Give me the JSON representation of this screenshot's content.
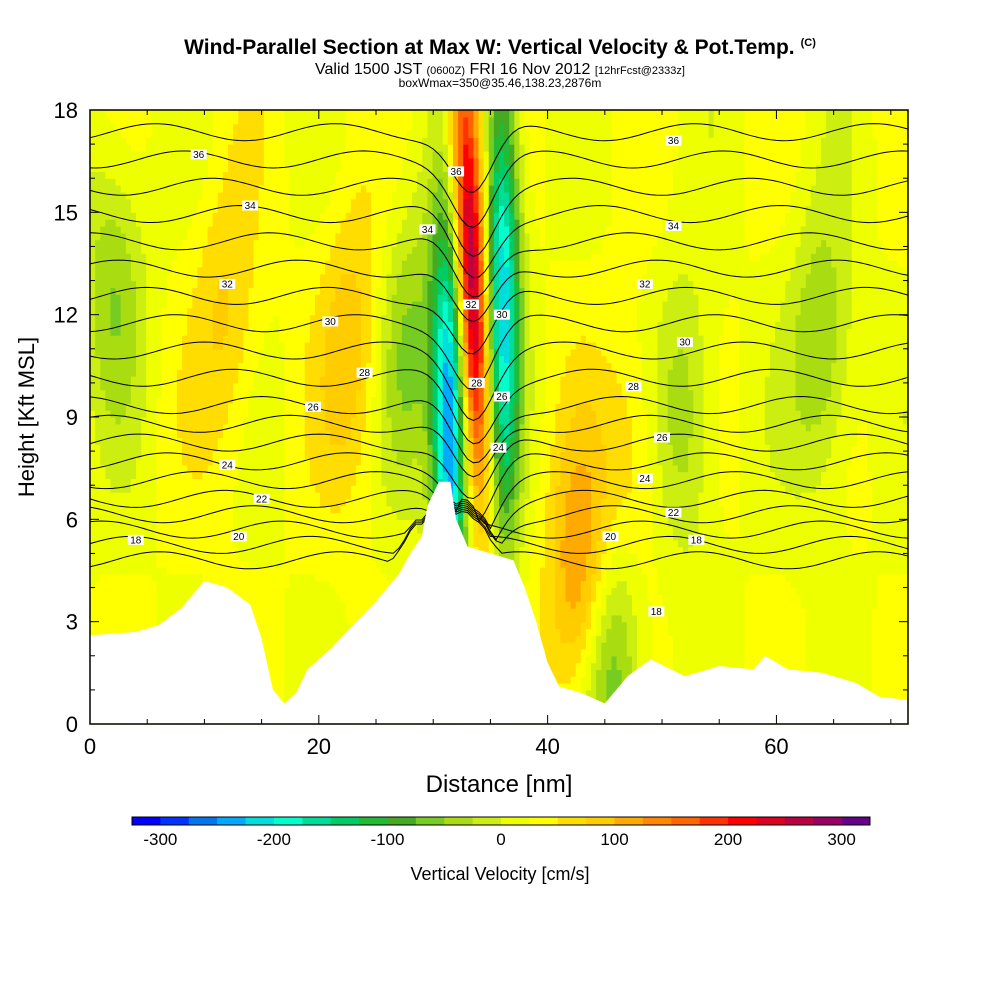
{
  "titles": {
    "main": "Wind-Parallel Section at Max W: Vertical Velocity & Pot.Temp.",
    "copyright": "(C)",
    "valid_a": "Valid 1500 JST",
    "valid_b": "(0600Z)",
    "valid_c": "FRI 16 Nov 2012",
    "valid_d": "[12hrFcst@2333z]",
    "box": "boxWmax=350@35.46,138.23,2876m"
  },
  "chart_data": {
    "type": "heatmap",
    "xlabel": "Distance [nm]",
    "ylabel": "Height [Kft MSL]",
    "xlim": [
      0,
      71.5
    ],
    "ylim": [
      0,
      18
    ],
    "xticks": [
      0,
      20,
      40,
      60
    ],
    "yticks": [
      0,
      3,
      6,
      9,
      12,
      15,
      18
    ],
    "colorbar": {
      "label": "Vertical Velocity [cm/s]",
      "range": [
        -325,
        325
      ],
      "tick_values": [
        -300,
        -200,
        -100,
        0,
        100,
        200,
        300
      ],
      "tick_labels": [
        "-300",
        "-200",
        "-100",
        "0",
        "100",
        "200",
        "300"
      ],
      "colors": [
        "#0000ff",
        "#0033ff",
        "#0077ee",
        "#00aaff",
        "#00dddd",
        "#00ffcc",
        "#00dd99",
        "#00cc66",
        "#22bb33",
        "#44aa22",
        "#77cc22",
        "#aadd11",
        "#ccee11",
        "#eeff00",
        "#ffff00",
        "#ffdd00",
        "#ffcc00",
        "#ffaa00",
        "#ff8800",
        "#ff6600",
        "#ff3300",
        "#ff0000",
        "#dd0022",
        "#bb0044",
        "#990066",
        "#660088"
      ]
    },
    "terrain": [
      [
        0,
        2.6
      ],
      [
        4,
        2.7
      ],
      [
        6,
        2.9
      ],
      [
        8,
        3.4
      ],
      [
        10,
        4.2
      ],
      [
        12,
        4.0
      ],
      [
        14,
        3.5
      ],
      [
        15,
        2.5
      ],
      [
        16,
        1.0
      ],
      [
        17,
        0.6
      ],
      [
        18,
        0.9
      ],
      [
        19,
        1.6
      ],
      [
        21,
        2.2
      ],
      [
        23,
        2.9
      ],
      [
        25,
        3.6
      ],
      [
        27,
        4.4
      ],
      [
        28,
        5.0
      ],
      [
        29,
        5.5
      ],
      [
        29.5,
        6.4
      ],
      [
        30.5,
        7.1
      ],
      [
        31.5,
        7.1
      ],
      [
        32,
        6.0
      ],
      [
        33,
        5.2
      ],
      [
        35,
        5.0
      ],
      [
        37,
        4.8
      ],
      [
        38,
        4.0
      ],
      [
        39,
        3.0
      ],
      [
        40,
        1.8
      ],
      [
        41,
        1.1
      ],
      [
        42,
        1.0
      ],
      [
        43,
        0.9
      ],
      [
        45,
        0.6
      ],
      [
        47,
        1.4
      ],
      [
        49,
        1.9
      ],
      [
        52,
        1.4
      ],
      [
        55,
        1.7
      ],
      [
        58,
        1.6
      ],
      [
        59,
        2.0
      ],
      [
        61,
        1.6
      ],
      [
        64,
        1.5
      ],
      [
        67,
        1.2
      ],
      [
        69,
        0.8
      ],
      [
        71.5,
        0.7
      ]
    ],
    "updraft_cores": [
      {
        "x": 33.2,
        "z": 13.5,
        "w": 300
      },
      {
        "x": 43,
        "z": 4,
        "w": 120
      },
      {
        "x": 23,
        "z": 11,
        "w": 70
      },
      {
        "x": 12,
        "z": 12,
        "w": 55
      },
      {
        "x": 47.5,
        "z": 7.5,
        "w": 55
      }
    ],
    "downdraft_cores": [
      {
        "x": 36,
        "z": 12.5,
        "w": -250
      },
      {
        "x": 31.5,
        "z": 9,
        "w": -300
      },
      {
        "x": 2,
        "z": 13,
        "w": -70
      },
      {
        "x": 28,
        "z": 11,
        "w": -80
      },
      {
        "x": 45.5,
        "z": 1.8,
        "w": -120
      },
      {
        "x": 52,
        "z": 9,
        "w": -70
      },
      {
        "x": 64,
        "z": 11,
        "w": -80
      }
    ],
    "potential_temperature": {
      "units_note": "",
      "levels": [
        18,
        19,
        20,
        21,
        22,
        23,
        24,
        25,
        26,
        27,
        28,
        29,
        30,
        31,
        32,
        33,
        34,
        35,
        36,
        37
      ],
      "labels": [
        {
          "text": "36",
          "x": 9.5,
          "z": 16.7
        },
        {
          "text": "34",
          "x": 14,
          "z": 15.2
        },
        {
          "text": "32",
          "x": 12,
          "z": 12.9
        },
        {
          "text": "30",
          "x": 21,
          "z": 11.8
        },
        {
          "text": "28",
          "x": 24,
          "z": 10.3
        },
        {
          "text": "26",
          "x": 19.5,
          "z": 9.3
        },
        {
          "text": "24",
          "x": 12,
          "z": 7.6
        },
        {
          "text": "22",
          "x": 15,
          "z": 6.6
        },
        {
          "text": "20",
          "x": 13,
          "z": 5.5
        },
        {
          "text": "18",
          "x": 4,
          "z": 5.4
        },
        {
          "text": "36",
          "x": 32,
          "z": 16.2
        },
        {
          "text": "34",
          "x": 29.5,
          "z": 14.5
        },
        {
          "text": "32",
          "x": 33.3,
          "z": 12.3
        },
        {
          "text": "30",
          "x": 36,
          "z": 12.0
        },
        {
          "text": "28",
          "x": 33.8,
          "z": 10.0
        },
        {
          "text": "26",
          "x": 36,
          "z": 9.6
        },
        {
          "text": "24",
          "x": 35.7,
          "z": 8.1
        },
        {
          "text": "36",
          "x": 51,
          "z": 17.1
        },
        {
          "text": "34",
          "x": 51,
          "z": 14.6
        },
        {
          "text": "32",
          "x": 48.5,
          "z": 12.9
        },
        {
          "text": "30",
          "x": 52,
          "z": 11.2
        },
        {
          "text": "28",
          "x": 47.5,
          "z": 9.9
        },
        {
          "text": "26",
          "x": 50,
          "z": 8.4
        },
        {
          "text": "24",
          "x": 48.5,
          "z": 7.2
        },
        {
          "text": "22",
          "x": 51,
          "z": 6.2
        },
        {
          "text": "20",
          "x": 45.5,
          "z": 5.5
        },
        {
          "text": "18",
          "x": 53,
          "z": 5.4
        },
        {
          "text": "18",
          "x": 49.5,
          "z": 3.3
        }
      ]
    }
  }
}
